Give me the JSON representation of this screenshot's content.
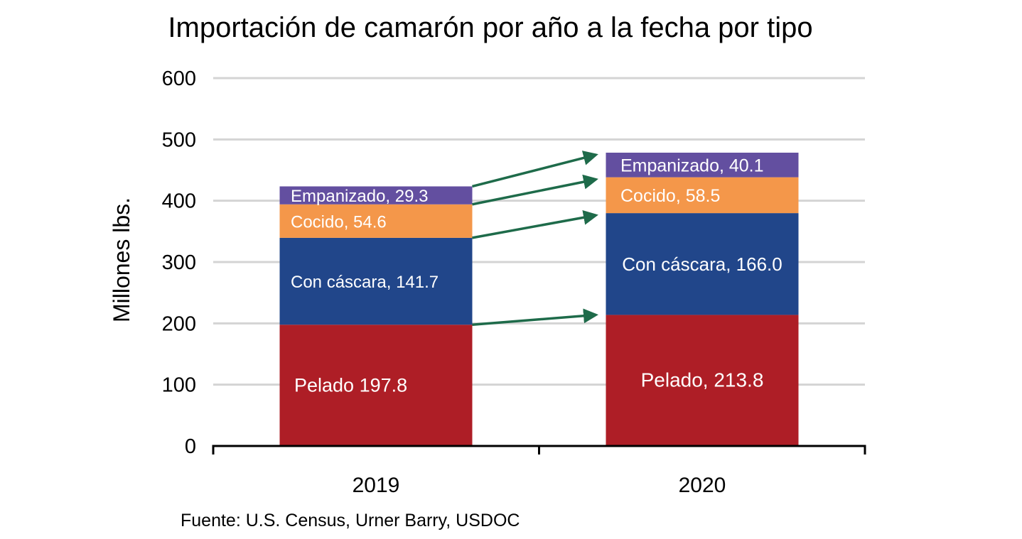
{
  "chart_data": {
    "type": "bar",
    "stacked": true,
    "title": "Importación de camarón por año a la fecha por tipo",
    "ylabel": "Millones lbs.",
    "xlabel": "",
    "ylim": [
      0,
      600
    ],
    "yticks": [
      "0",
      "100",
      "200",
      "300",
      "400",
      "500",
      "600"
    ],
    "categories": [
      "2019",
      "2020"
    ],
    "series": [
      {
        "name": "Pelado",
        "values": [
          197.8,
          213.8
        ],
        "color": "#ae1e26",
        "labels": [
          "Pelado 197.8",
          "Pelado, 213.8"
        ]
      },
      {
        "name": "Con cáscara",
        "values": [
          141.7,
          166.0
        ],
        "color": "#21468a",
        "labels": [
          "Con cáscara, 141.7",
          "Con cáscara, 166.0"
        ]
      },
      {
        "name": "Cocido",
        "values": [
          54.6,
          58.5
        ],
        "color": "#f4974a",
        "labels": [
          "Cocido, 54.6",
          "Cocido, 58.5"
        ]
      },
      {
        "name": "Empanizado",
        "values": [
          29.3,
          40.1
        ],
        "color": "#634fa0",
        "labels": [
          "Empanizado, 29.3",
          "Empanizado, 40.1"
        ]
      }
    ],
    "grid": true,
    "arrows": true,
    "arrow_color": "#1e6b4a",
    "source": "Fuente: U.S. Census, Urner Barry, USDOC"
  }
}
